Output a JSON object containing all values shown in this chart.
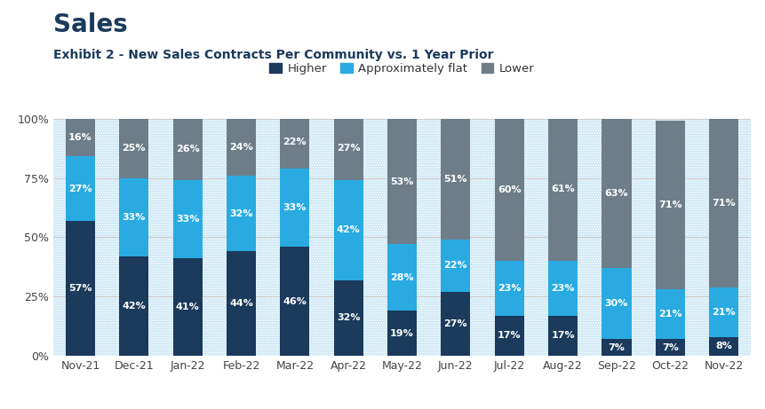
{
  "title": "Sales",
  "subtitle": "Exhibit 2 - New Sales Contracts Per Community vs. 1 Year Prior",
  "categories": [
    "Nov-21",
    "Dec-21",
    "Jan-22",
    "Feb-22",
    "Mar-22",
    "Apr-22",
    "May-22",
    "Jun-22",
    "Jul-22",
    "Aug-22",
    "Sep-22",
    "Oct-22",
    "Nov-22"
  ],
  "higher": [
    57,
    42,
    41,
    44,
    46,
    32,
    19,
    27,
    17,
    17,
    7,
    7,
    8
  ],
  "approx_flat": [
    27,
    33,
    33,
    32,
    33,
    42,
    28,
    22,
    23,
    23,
    30,
    21,
    21
  ],
  "lower": [
    16,
    25,
    26,
    24,
    22,
    27,
    53,
    51,
    60,
    61,
    63,
    71,
    71
  ],
  "color_higher": "#1B3A5C",
  "color_approx": "#29ABE2",
  "color_lower": "#6D7E8A",
  "background_color": "#FFFFFF",
  "hatch_bg_color": "#C8E6F5",
  "legend_labels": [
    "Higher",
    "Approximately flat",
    "Lower"
  ],
  "yticks": [
    0,
    25,
    50,
    75,
    100
  ],
  "ytick_labels": [
    "0%",
    "25%",
    "50%",
    "75%",
    "100%"
  ],
  "title_fontsize": 20,
  "subtitle_fontsize": 10,
  "label_fontsize": 8,
  "legend_fontsize": 9.5,
  "tick_fontsize": 9
}
